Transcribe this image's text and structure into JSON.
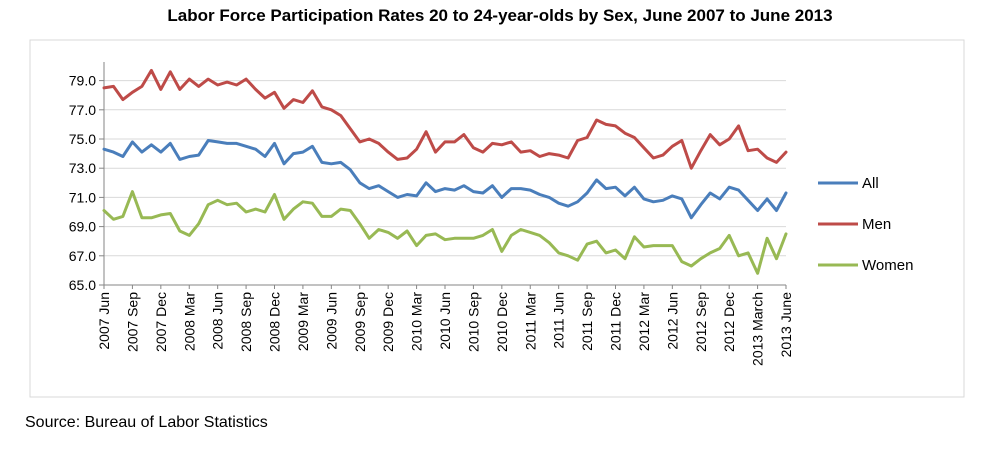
{
  "chart_data": {
    "type": "line",
    "title": "Labor Force Participation Rates 20 to 24-year-olds by Sex, June 2007 to June 2013",
    "xlabel": "",
    "ylabel": "",
    "ylim": [
      65.0,
      80.0
    ],
    "y_ticks": [
      "65.0",
      "67.0",
      "69.0",
      "71.0",
      "73.0",
      "75.0",
      "77.0",
      "79.0"
    ],
    "x_tick_labels": [
      "2007 Jun",
      "2007 Sep",
      "2007 Dec",
      "2008 Mar",
      "2008 Jun",
      "2008 Sep",
      "2008 Dec",
      "2009 Mar",
      "2009 Jun",
      "2009 Sep",
      "2009 Dec",
      "2010 Mar",
      "2010 Jun",
      "2010 Sep",
      "2010 Dec",
      "2011 Mar",
      "2011 Jun",
      "2011 Sep",
      "2011 Dec",
      "2012 Mar",
      "2012 Jun",
      "2012 Sep",
      "2012 Dec",
      "2013 March",
      "2013 June"
    ],
    "grid": "horizontal",
    "legend_position": "right",
    "series": [
      {
        "name": "All",
        "color": "#4a7ebb",
        "values": [
          74.3,
          74.1,
          73.8,
          74.8,
          74.1,
          74.6,
          74.1,
          74.7,
          73.6,
          73.8,
          73.9,
          74.9,
          74.8,
          74.7,
          74.7,
          74.5,
          74.3,
          73.8,
          74.7,
          73.3,
          74.0,
          74.1,
          74.5,
          73.4,
          73.3,
          73.4,
          72.9,
          72.0,
          71.6,
          71.8,
          71.4,
          71.0,
          71.2,
          71.1,
          72.0,
          71.4,
          71.6,
          71.5,
          71.8,
          71.4,
          71.3,
          71.8,
          71.0,
          71.6,
          71.6,
          71.5,
          71.2,
          71.0,
          70.6,
          70.4,
          70.7,
          71.3,
          72.2,
          71.6,
          71.7,
          71.1,
          71.7,
          70.9,
          70.7,
          70.8,
          71.1,
          70.9,
          69.6,
          70.5,
          71.3,
          70.9,
          71.7,
          71.5,
          70.8,
          70.1,
          70.9,
          70.1,
          71.3
        ]
      },
      {
        "name": "Men",
        "color": "#be4b48",
        "values": [
          78.5,
          78.6,
          77.7,
          78.2,
          78.6,
          79.7,
          78.4,
          79.6,
          78.4,
          79.1,
          78.6,
          79.1,
          78.7,
          78.9,
          78.7,
          79.1,
          78.4,
          77.8,
          78.2,
          77.1,
          77.7,
          77.5,
          78.3,
          77.2,
          77.0,
          76.6,
          75.7,
          74.8,
          75.0,
          74.7,
          74.1,
          73.6,
          73.7,
          74.3,
          75.5,
          74.1,
          74.8,
          74.8,
          75.3,
          74.4,
          74.1,
          74.7,
          74.6,
          74.8,
          74.1,
          74.2,
          73.8,
          74.0,
          73.9,
          73.7,
          74.9,
          75.1,
          76.3,
          76.0,
          75.9,
          75.4,
          75.1,
          74.4,
          73.7,
          73.9,
          74.5,
          74.9,
          73.0,
          74.2,
          75.3,
          74.6,
          75.0,
          75.9,
          74.2,
          74.3,
          73.7,
          73.4,
          74.1
        ]
      },
      {
        "name": "Women",
        "color": "#98b954",
        "values": [
          70.1,
          69.5,
          69.7,
          71.4,
          69.6,
          69.6,
          69.8,
          69.9,
          68.7,
          68.4,
          69.2,
          70.5,
          70.8,
          70.5,
          70.6,
          70.0,
          70.2,
          70.0,
          71.2,
          69.5,
          70.2,
          70.7,
          70.6,
          69.7,
          69.7,
          70.2,
          70.1,
          69.2,
          68.2,
          68.8,
          68.6,
          68.2,
          68.7,
          67.7,
          68.4,
          68.5,
          68.1,
          68.2,
          68.2,
          68.2,
          68.4,
          68.8,
          67.3,
          68.4,
          68.8,
          68.6,
          68.4,
          67.9,
          67.2,
          67.0,
          66.7,
          67.8,
          68.0,
          67.2,
          67.4,
          66.8,
          68.3,
          67.6,
          67.7,
          67.7,
          67.7,
          66.6,
          66.3,
          66.8,
          67.2,
          67.5,
          68.4,
          67.0,
          67.2,
          65.8,
          68.2,
          66.8,
          68.5
        ]
      }
    ]
  },
  "source": "Source: Bureau of Labor Statistics"
}
